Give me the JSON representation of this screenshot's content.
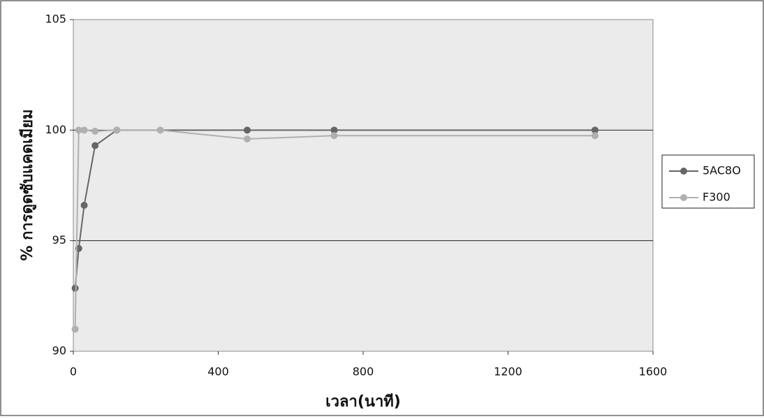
{
  "chart_data": {
    "type": "line",
    "x_label": "เวลา(นาที)",
    "y_label": "% การดูดซับแคดเมียม",
    "xlim": [
      0,
      1600
    ],
    "xticks": [
      0,
      400,
      800,
      1200,
      1600
    ],
    "ylim": [
      90,
      105
    ],
    "yticks": [
      90,
      95,
      100,
      105
    ],
    "grid": true,
    "legend": "right",
    "series": [
      {
        "name": "5AC8O",
        "color": "#666666",
        "x": [
          5,
          15,
          30,
          60,
          120,
          480,
          720,
          1440
        ],
        "values": [
          92.85,
          94.65,
          96.6,
          99.3,
          100,
          100,
          100,
          100
        ]
      },
      {
        "name": "F300",
        "color": "#b0b0b0",
        "x": [
          5,
          15,
          30,
          60,
          120,
          240,
          480,
          720,
          1440
        ],
        "values": [
          91.0,
          100,
          100,
          99.95,
          100,
          100,
          99.6,
          99.75,
          99.75
        ]
      }
    ]
  }
}
